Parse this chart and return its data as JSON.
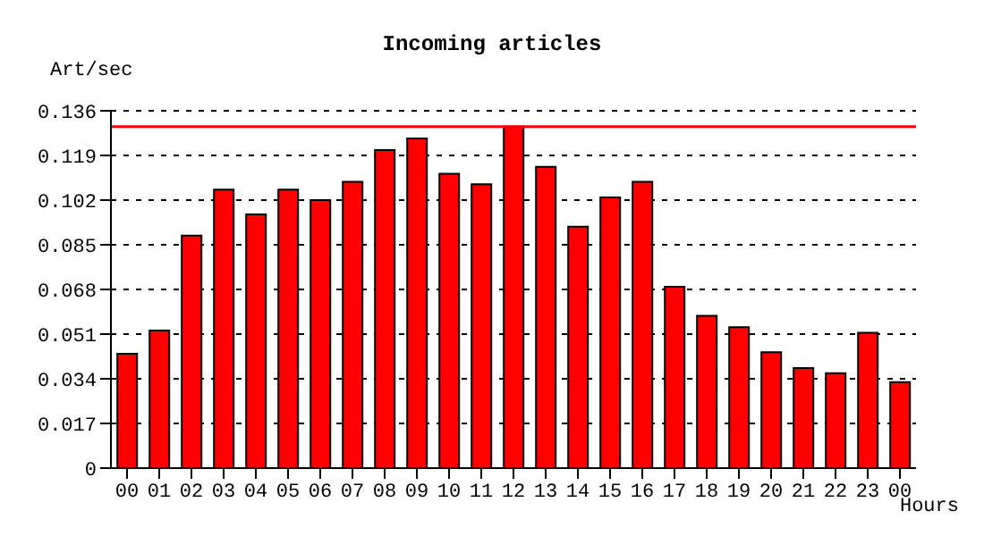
{
  "chart_data": {
    "type": "bar",
    "title": "Incoming articles",
    "xlabel": "Hours",
    "ylabel": "Art/sec",
    "categories": [
      "00",
      "01",
      "02",
      "03",
      "04",
      "05",
      "06",
      "07",
      "08",
      "09",
      "10",
      "11",
      "12",
      "13",
      "14",
      "15",
      "16",
      "17",
      "18",
      "19",
      "20",
      "21",
      "22",
      "23",
      "00"
    ],
    "values": [
      0.0435,
      0.0524,
      0.0885,
      0.106,
      0.0966,
      0.106,
      0.102,
      0.109,
      0.121,
      0.1255,
      0.112,
      0.108,
      0.13,
      0.1147,
      0.0919,
      0.103,
      0.109,
      0.069,
      0.058,
      0.0536,
      0.0441,
      0.0381,
      0.0361,
      0.0515,
      0.0327
    ],
    "color": "#ff0000",
    "ylim": [
      0,
      0.136
    ],
    "yticks": [
      0,
      0.017,
      0.034,
      0.051,
      0.068,
      0.085,
      0.102,
      0.119,
      0.136
    ],
    "grid": "y",
    "ref_lines": [
      {
        "axis": "y",
        "value": 0.13,
        "color": "#ff0000"
      }
    ]
  }
}
